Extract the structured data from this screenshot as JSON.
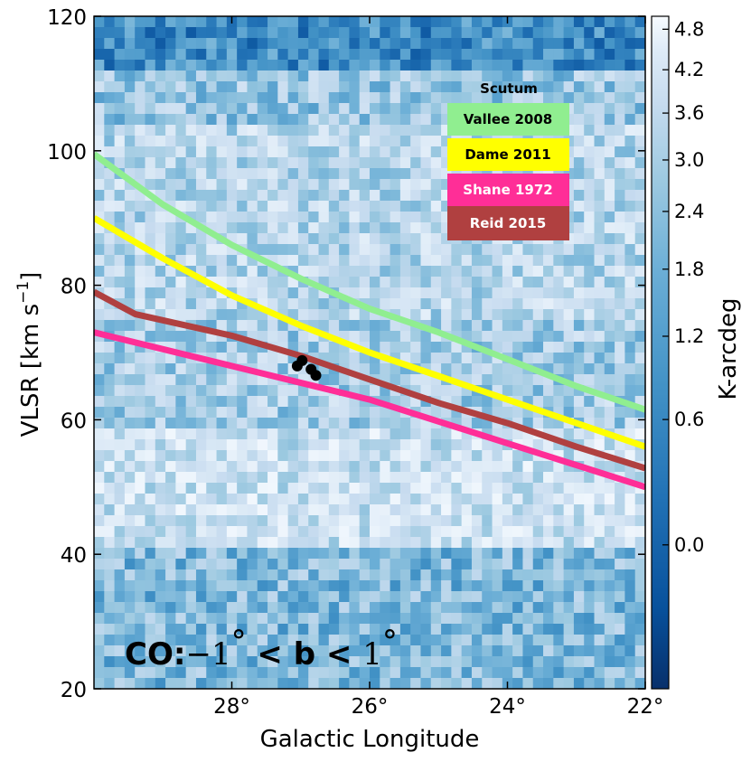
{
  "chart_data": {
    "type": "heatmap",
    "title": "",
    "xlabel": "Galactic Longitude",
    "ylabel": "VLSR [km s",
    "ylabel_sup": "−1",
    "ylabel_close": "]",
    "xlim": [
      30,
      22
    ],
    "ylim": [
      20,
      120
    ],
    "x_ticks": [
      28,
      26,
      24,
      22
    ],
    "x_tick_labels": [
      "28°",
      "26°",
      "24°",
      "22°"
    ],
    "y_ticks": [
      20,
      40,
      60,
      80,
      100,
      120
    ],
    "y_tick_labels": [
      "20",
      "40",
      "60",
      "80",
      "100",
      "120"
    ],
    "colorbar": {
      "label": "K-arcdeg",
      "scale": "sqrt",
      "range": [
        -0.24,
        5.0
      ],
      "ticks": [
        0.0,
        0.6,
        1.2,
        1.8,
        2.4,
        3.0,
        3.6,
        4.2,
        4.8
      ],
      "tick_labels": [
        "0.0",
        "0.6",
        "1.2",
        "1.8",
        "2.4",
        "3.0",
        "3.6",
        "4.2",
        "4.8"
      ],
      "colormap": "Blues"
    },
    "annotation": {
      "prefix": "CO:",
      "neg_one": "−1",
      "deg": "°",
      "mid": " < b < ",
      "one": "1"
    },
    "legend": {
      "title": "Scutum",
      "placement": "upper-right",
      "entries": [
        "Vallee 2008",
        "Dame 2011",
        "Shane 1972",
        "Reid 2015"
      ]
    },
    "series": [
      {
        "name": "Vallee 2008",
        "color": "#90ee90",
        "x": [
          30.0,
          29.0,
          28.0,
          27.0,
          26.0,
          25.0,
          24.0,
          23.0,
          22.0
        ],
        "y": [
          99.5,
          92.0,
          86.0,
          81.0,
          76.5,
          73.0,
          69.0,
          65.0,
          61.5
        ]
      },
      {
        "name": "Dame 2011",
        "color": "#ffff00",
        "x": [
          30.0,
          29.0,
          28.0,
          27.0,
          26.0,
          25.0,
          24.0,
          23.0,
          22.0
        ],
        "y": [
          90.0,
          84.0,
          78.5,
          74.0,
          70.0,
          66.5,
          63.0,
          59.5,
          56.0
        ]
      },
      {
        "name": "Reid 2015",
        "color": "#b04040",
        "x": [
          30.0,
          29.4,
          28.0,
          27.0,
          26.0,
          25.0,
          24.0,
          23.0,
          22.0
        ],
        "y": [
          79.0,
          75.7,
          72.5,
          69.5,
          66.0,
          62.5,
          59.5,
          56.0,
          52.8
        ]
      },
      {
        "name": "Shane 1972",
        "color": "#ff2e97",
        "x": [
          30.0,
          28.0,
          26.0,
          24.0,
          22.0
        ],
        "y": [
          73.0,
          68.0,
          63.0,
          56.5,
          50.0
        ]
      }
    ],
    "points": {
      "color": "#000000",
      "x": [
        27.05,
        26.98,
        26.85,
        26.78
      ],
      "y": [
        68.0,
        68.8,
        67.5,
        66.6
      ]
    }
  }
}
